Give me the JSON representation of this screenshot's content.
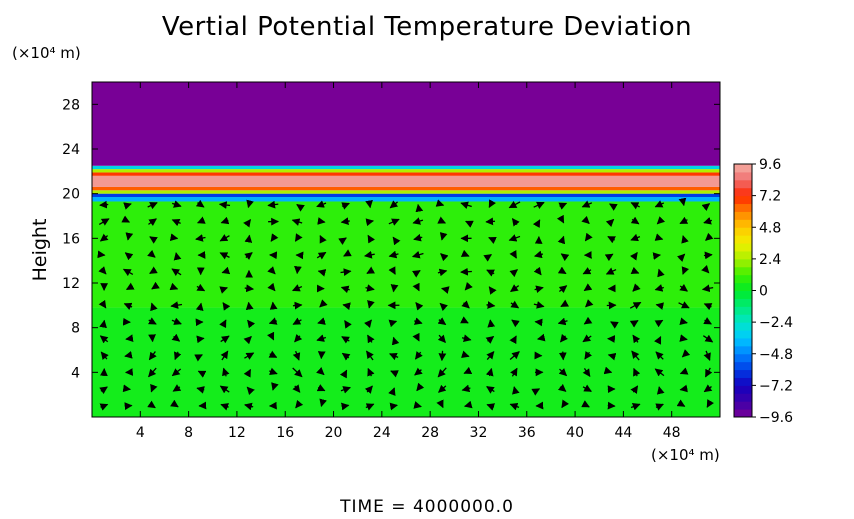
{
  "chart_data": {
    "type": "heatmap",
    "title": "Vertial Potential Temperature Deviation",
    "ylabel": "Height",
    "xunit": "(×10⁴ m)",
    "yunit": "(×10⁴ m)",
    "xlim": [
      0,
      52
    ],
    "ylim": [
      0,
      30
    ],
    "x_ticks": [
      4,
      8,
      12,
      16,
      20,
      24,
      28,
      32,
      36,
      40,
      44,
      48
    ],
    "y_ticks": [
      4,
      8,
      12,
      16,
      20,
      24,
      28
    ],
    "colorbar": {
      "range": [
        -9.6,
        9.6
      ],
      "ticks": [
        "9.6",
        "7.2",
        "4.8",
        "2.4",
        "0",
        "−2.4",
        "−4.8",
        "−7.2",
        "−9.6"
      ],
      "ticks_values": [
        9.6,
        7.2,
        4.8,
        2.4,
        0,
        -2.4,
        -4.8,
        -7.2,
        -9.6
      ]
    },
    "field_bands": [
      {
        "y0": 0,
        "y1": 9.8,
        "value": 0.4
      },
      {
        "y0": 9.8,
        "y1": 19.3,
        "value": 0.9
      },
      {
        "y0": 19.3,
        "y1": 19.7,
        "value": -4.0
      },
      {
        "y0": 19.7,
        "y1": 20.0,
        "value": -6.0
      },
      {
        "y0": 20.0,
        "y1": 20.3,
        "value": 2.5
      },
      {
        "y0": 20.3,
        "y1": 20.6,
        "value": 6.5
      },
      {
        "y0": 20.6,
        "y1": 21.6,
        "value": 9.2
      },
      {
        "y0": 21.6,
        "y1": 21.9,
        "value": 7.0
      },
      {
        "y0": 21.9,
        "y1": 22.2,
        "value": 2.5
      },
      {
        "y0": 22.2,
        "y1": 22.5,
        "value": -3.0
      },
      {
        "y0": 22.5,
        "y1": 30,
        "value": -9.6
      }
    ]
  },
  "footer": "TIME  =  4000000.0"
}
